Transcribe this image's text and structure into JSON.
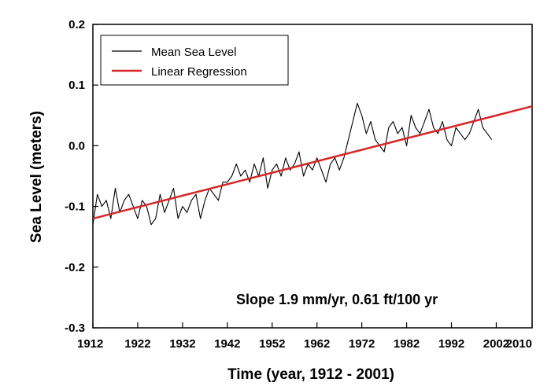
{
  "chart_data": {
    "type": "line",
    "xlabel": "Time (year, 1912 - 2001)",
    "ylabel": "Sea Level (meters)",
    "xlim": [
      1912,
      2010
    ],
    "ylim": [
      -0.3,
      0.2
    ],
    "x_ticks": [
      "1912",
      "1922",
      "1932",
      "1942",
      "1952",
      "1962",
      "1972",
      "1982",
      "1992",
      "2002",
      "2010"
    ],
    "y_ticks": [
      "0.2",
      "0.1",
      "0.0",
      "-0.1",
      "-0.2",
      "-0.3"
    ],
    "grid": false,
    "legend": {
      "position": "top-left",
      "entries": [
        "Mean Sea Level",
        "Linear Regression"
      ]
    },
    "annotation": "Slope 1.9 mm/yr, 0.61 ft/100 yr",
    "colors": {
      "mean_sea_level": "#000000",
      "linear_regression": "#d62728"
    },
    "series": [
      {
        "name": "Mean Sea Level",
        "x": [
          1912.0,
          1913.0,
          1914.0,
          1915.0,
          1916.0,
          1917.0,
          1918.0,
          1919.0,
          1920.0,
          1921.0,
          1922.0,
          1923.0,
          1924.0,
          1925.0,
          1926.0,
          1927.0,
          1928.0,
          1929.0,
          1930.0,
          1931.0,
          1932.0,
          1933.0,
          1934.0,
          1935.0,
          1936.0,
          1937.0,
          1938.0,
          1939.0,
          1940.0,
          1941.0,
          1942.0,
          1943.0,
          1944.0,
          1945.0,
          1946.0,
          1947.0,
          1948.0,
          1949.0,
          1950.0,
          1951.0,
          1952.0,
          1953.0,
          1954.0,
          1955.0,
          1956.0,
          1957.0,
          1958.0,
          1959.0,
          1960.0,
          1961.0,
          1962.0,
          1963.0,
          1964.0,
          1965.0,
          1966.0,
          1967.0,
          1968.0,
          1969.0,
          1970.0,
          1971.0,
          1972.0,
          1973.0,
          1974.0,
          1975.0,
          1976.0,
          1977.0,
          1978.0,
          1979.0,
          1980.0,
          1981.0,
          1982.0,
          1983.0,
          1984.0,
          1985.0,
          1986.0,
          1987.0,
          1988.0,
          1989.0,
          1990.0,
          1991.0,
          1992.0,
          1993.0,
          1994.0,
          1995.0,
          1996.0,
          1997.0,
          1998.0,
          1999.0,
          2000.0,
          2001.0
        ],
        "values": [
          -0.13,
          -0.08,
          -0.1,
          -0.09,
          -0.12,
          -0.07,
          -0.11,
          -0.09,
          -0.08,
          -0.1,
          -0.12,
          -0.09,
          -0.1,
          -0.13,
          -0.12,
          -0.08,
          -0.11,
          -0.09,
          -0.07,
          -0.12,
          -0.1,
          -0.11,
          -0.09,
          -0.08,
          -0.12,
          -0.09,
          -0.07,
          -0.08,
          -0.09,
          -0.06,
          -0.06,
          -0.05,
          -0.03,
          -0.05,
          -0.04,
          -0.06,
          -0.03,
          -0.05,
          -0.02,
          -0.07,
          -0.04,
          -0.03,
          -0.05,
          -0.02,
          -0.04,
          -0.03,
          -0.01,
          -0.05,
          -0.03,
          -0.04,
          -0.02,
          -0.04,
          -0.06,
          -0.03,
          -0.02,
          -0.04,
          -0.02,
          0.01,
          0.04,
          0.07,
          0.05,
          0.02,
          0.04,
          0.01,
          0.0,
          -0.01,
          0.03,
          0.04,
          0.02,
          0.03,
          0.0,
          0.05,
          0.03,
          0.02,
          0.04,
          0.06,
          0.03,
          0.02,
          0.04,
          0.01,
          0.0,
          0.03,
          0.02,
          0.01,
          0.02,
          0.04,
          0.06,
          0.03,
          0.02,
          0.01
        ]
      },
      {
        "name": "Linear Regression",
        "x": [
          1912,
          2010
        ],
        "values": [
          -0.12,
          0.065
        ]
      }
    ]
  }
}
